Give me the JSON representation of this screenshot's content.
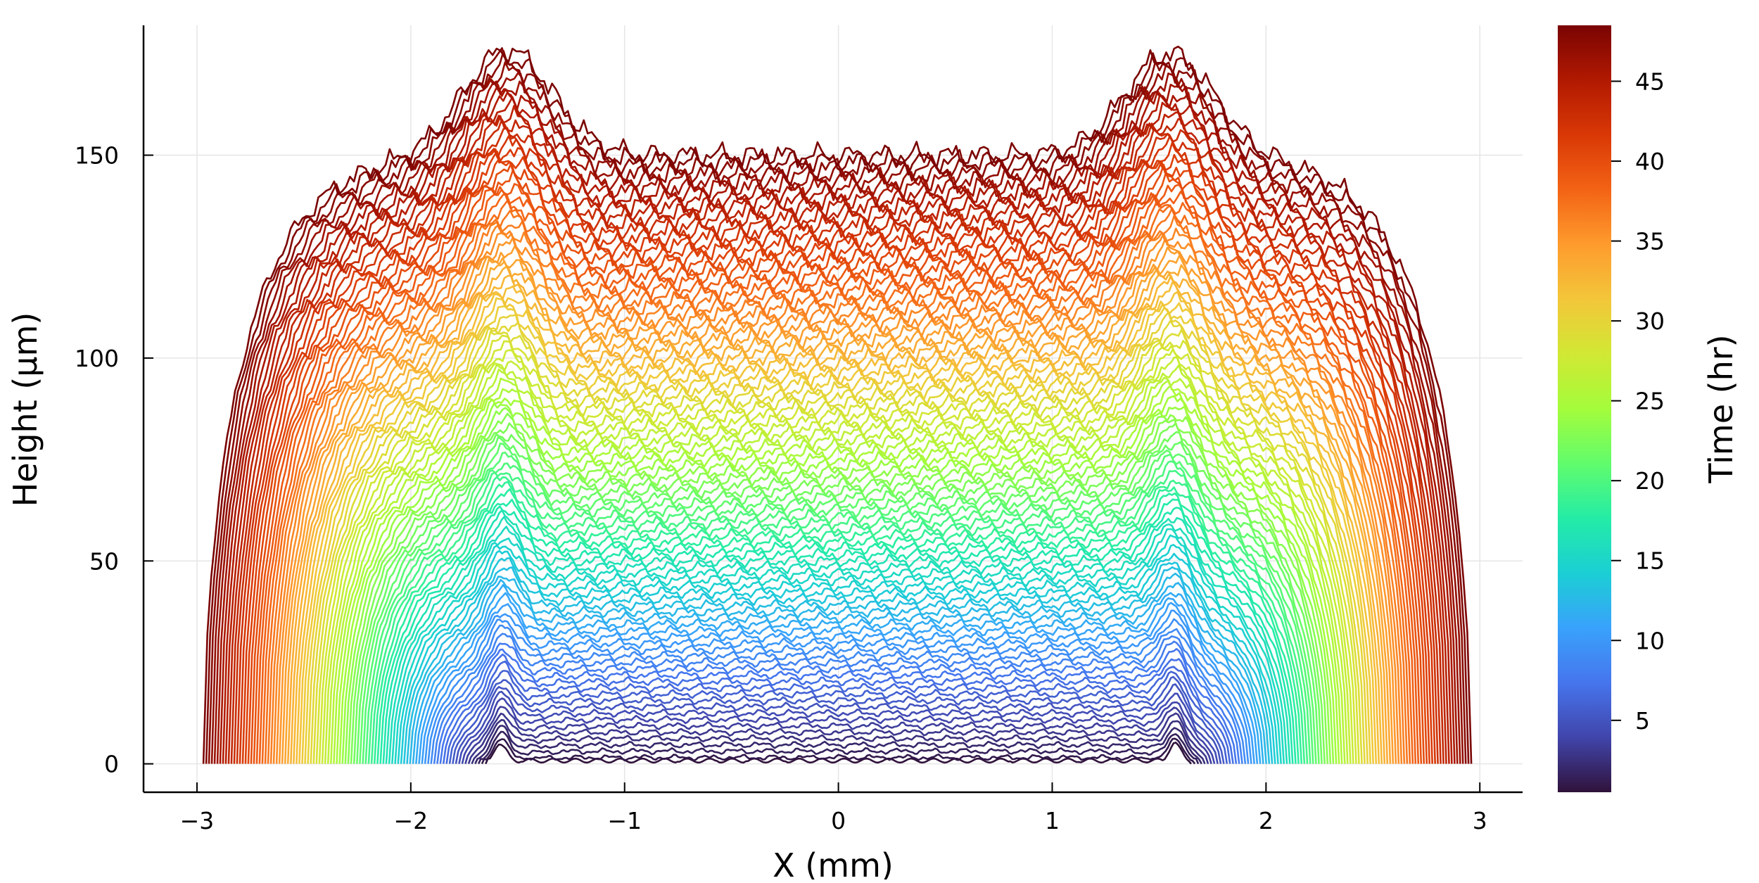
{
  "chart_data": {
    "type": "line",
    "xlabel": "X (mm)",
    "ylabel": "Height (µm)",
    "xlim": [
      -3.25,
      3.2
    ],
    "ylim": [
      -7,
      182
    ],
    "xticks": [
      -3,
      -2,
      -1,
      0,
      1,
      2,
      3
    ],
    "xtick_labels": [
      "−3",
      "−2",
      "−1",
      "0",
      "1",
      "2",
      "3"
    ],
    "yticks": [
      0,
      50,
      100,
      150
    ],
    "ytick_labels": [
      "0",
      "50",
      "100",
      "150"
    ],
    "grid": true,
    "series_count": 97,
    "time_range_hr": [
      0.5,
      48.5
    ],
    "profile_model": {
      "description_units": "x in mm, height in µm, t in hr",
      "left_edge_mm": [
        -1.65,
        -2.97
      ],
      "right_edge_mm": [
        1.65,
        2.96
      ],
      "center_height_um": [
        0,
        150
      ],
      "shoulder_height_um": [
        6,
        176
      ],
      "shoulder_position_mm": [
        1.58,
        1.55
      ]
    },
    "colorbar": {
      "label": "Time (hr)",
      "range": [
        0.5,
        48.5
      ],
      "ticks": [
        5,
        10,
        15,
        20,
        25,
        30,
        35,
        40,
        45
      ],
      "tick_labels": [
        "5",
        "10",
        "15",
        "20",
        "25",
        "30",
        "35",
        "40",
        "45"
      ],
      "colormap": "turbo",
      "stops": [
        "#30123b",
        "#4145ab",
        "#4675ed",
        "#39a2fc",
        "#1bcfd4",
        "#24eca6",
        "#61fc6c",
        "#a4fc3b",
        "#d1e834",
        "#f3c63a",
        "#fe9b2d",
        "#f36315",
        "#d93806",
        "#b11901",
        "#7a0403"
      ]
    }
  }
}
